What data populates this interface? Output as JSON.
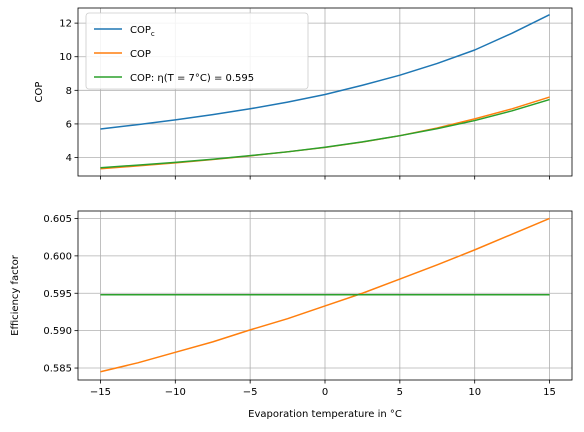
{
  "chart_data": [
    {
      "type": "line",
      "xlim": [
        -16.5,
        16.5
      ],
      "ylim": [
        2.9,
        12.9
      ],
      "x_ticks": [
        -15,
        -10,
        -5,
        0,
        5,
        10,
        15
      ],
      "y_ticks": [
        4,
        6,
        8,
        10,
        12
      ],
      "y_tick_labels": [
        "4",
        "6",
        "8",
        "10",
        "12"
      ],
      "x_tick_labels_visible": false,
      "ylabel": "COP",
      "xlabel": "",
      "grid": true,
      "legend_position": "top-left",
      "series": [
        {
          "name": "COP",
          "name_subscript": "c",
          "color": "#1f77b4",
          "x": [
            -15,
            -12.5,
            -10,
            -7.5,
            -5,
            -2.5,
            0,
            2.5,
            5,
            7.5,
            10,
            12.5,
            15
          ],
          "y": [
            5.7,
            5.96,
            6.24,
            6.55,
            6.9,
            7.3,
            7.75,
            8.3,
            8.9,
            9.6,
            10.4,
            11.4,
            12.5
          ]
        },
        {
          "name": "COP",
          "color": "#ff7f0e",
          "x": [
            -15,
            -12.5,
            -10,
            -7.5,
            -5,
            -2.5,
            0,
            2.5,
            5,
            7.5,
            10,
            12.5,
            15
          ],
          "y": [
            3.33,
            3.5,
            3.68,
            3.88,
            4.1,
            4.34,
            4.6,
            4.92,
            5.3,
            5.76,
            6.3,
            6.9,
            7.6
          ]
        },
        {
          "name": "COP: η(T = 7°C) = 0.595",
          "color": "#2ca02c",
          "x": [
            -15,
            -12.5,
            -10,
            -7.5,
            -5,
            -2.5,
            0,
            2.5,
            5,
            7.5,
            10,
            12.5,
            15
          ],
          "y": [
            3.39,
            3.55,
            3.71,
            3.9,
            4.11,
            4.34,
            4.61,
            4.93,
            5.3,
            5.72,
            6.2,
            6.78,
            7.45
          ]
        }
      ]
    },
    {
      "type": "line",
      "xlim": [
        -16.5,
        16.5
      ],
      "ylim": [
        0.5834,
        0.606
      ],
      "x_ticks": [
        -15,
        -10,
        -5,
        0,
        5,
        10,
        15
      ],
      "x_tick_labels": [
        "−15",
        "−10",
        "−5",
        "0",
        "5",
        "10",
        "15"
      ],
      "y_ticks": [
        0.585,
        0.59,
        0.595,
        0.6,
        0.605
      ],
      "y_tick_labels": [
        "0.585",
        "0.590",
        "0.595",
        "0.600",
        "0.605"
      ],
      "ylabel": "Efficiency factor",
      "xlabel": "Evaporation temperature in °C",
      "grid": true,
      "series": [
        {
          "color": "#ff7f0e",
          "x": [
            -15,
            -12.5,
            -10,
            -7.5,
            -5,
            -2.5,
            0,
            2.5,
            5,
            7.5,
            10,
            12.5,
            15
          ],
          "y": [
            0.5845,
            0.5857,
            0.5871,
            0.5885,
            0.5901,
            0.5916,
            0.5933,
            0.595,
            0.5969,
            0.5988,
            0.6008,
            0.6029,
            0.605
          ]
        },
        {
          "color": "#2ca02c",
          "x": [
            -15,
            15
          ],
          "y": [
            0.5948,
            0.5948
          ]
        }
      ]
    }
  ]
}
